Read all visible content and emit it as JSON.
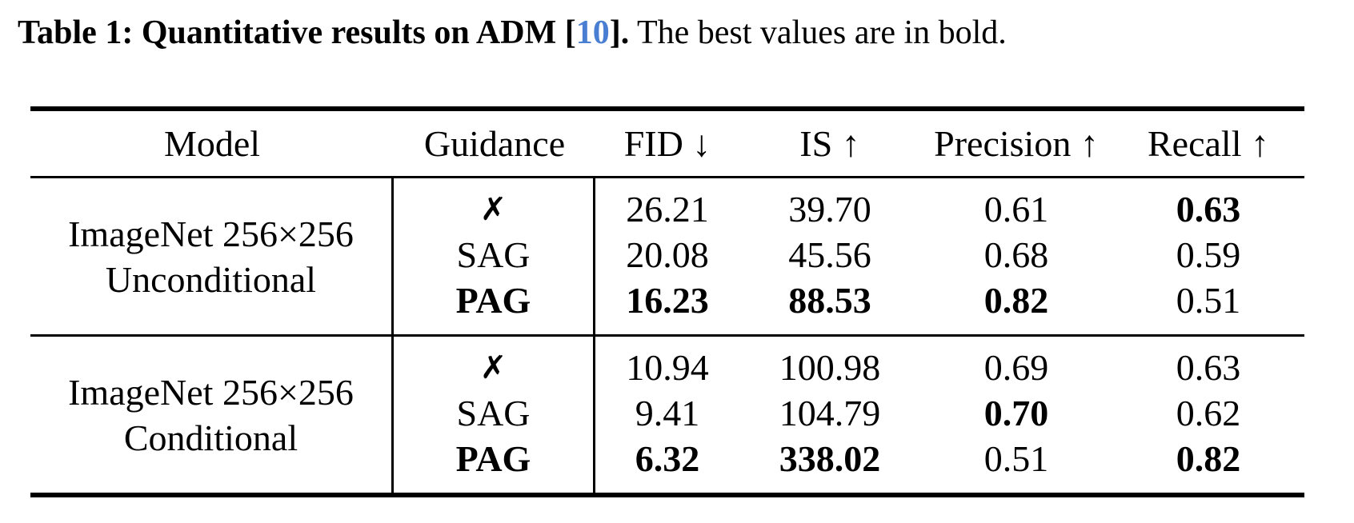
{
  "caption": {
    "bold_prefix": "Table 1: Quantitative results on ADM [",
    "citation": "10",
    "bold_suffix": "].",
    "rest": " The best values are in bold."
  },
  "colors": {
    "citation": "#4a7ed2",
    "text": "#000000",
    "background": "#ffffff"
  },
  "table": {
    "columns": [
      "Model",
      "Guidance",
      "FID ↓",
      "IS ↑",
      "Precision ↑",
      "Recall ↑"
    ],
    "blocks": [
      {
        "model_line1": "ImageNet 256×256",
        "model_line2": "Unconditional",
        "rows": [
          {
            "guidance": "✗",
            "fid": "26.21",
            "is": "39.70",
            "precision": "0.61",
            "recall": "0.63"
          },
          {
            "guidance": "SAG",
            "fid": "20.08",
            "is": "45.56",
            "precision": "0.68",
            "recall": "0.59"
          },
          {
            "guidance": "PAG",
            "fid": "16.23",
            "is": "88.53",
            "precision": "0.82",
            "recall": "0.51"
          }
        ]
      },
      {
        "model_line1": "ImageNet 256×256",
        "model_line2": "Conditional",
        "rows": [
          {
            "guidance": "✗",
            "fid": "10.94",
            "is": "100.98",
            "precision": "0.69",
            "recall": "0.63"
          },
          {
            "guidance": "SAG",
            "fid": "9.41",
            "is": "104.79",
            "precision": "0.70",
            "recall": "0.62"
          },
          {
            "guidance": "PAG",
            "fid": "6.32",
            "is": "338.02",
            "precision": "0.51",
            "recall": "0.82"
          }
        ]
      }
    ]
  }
}
